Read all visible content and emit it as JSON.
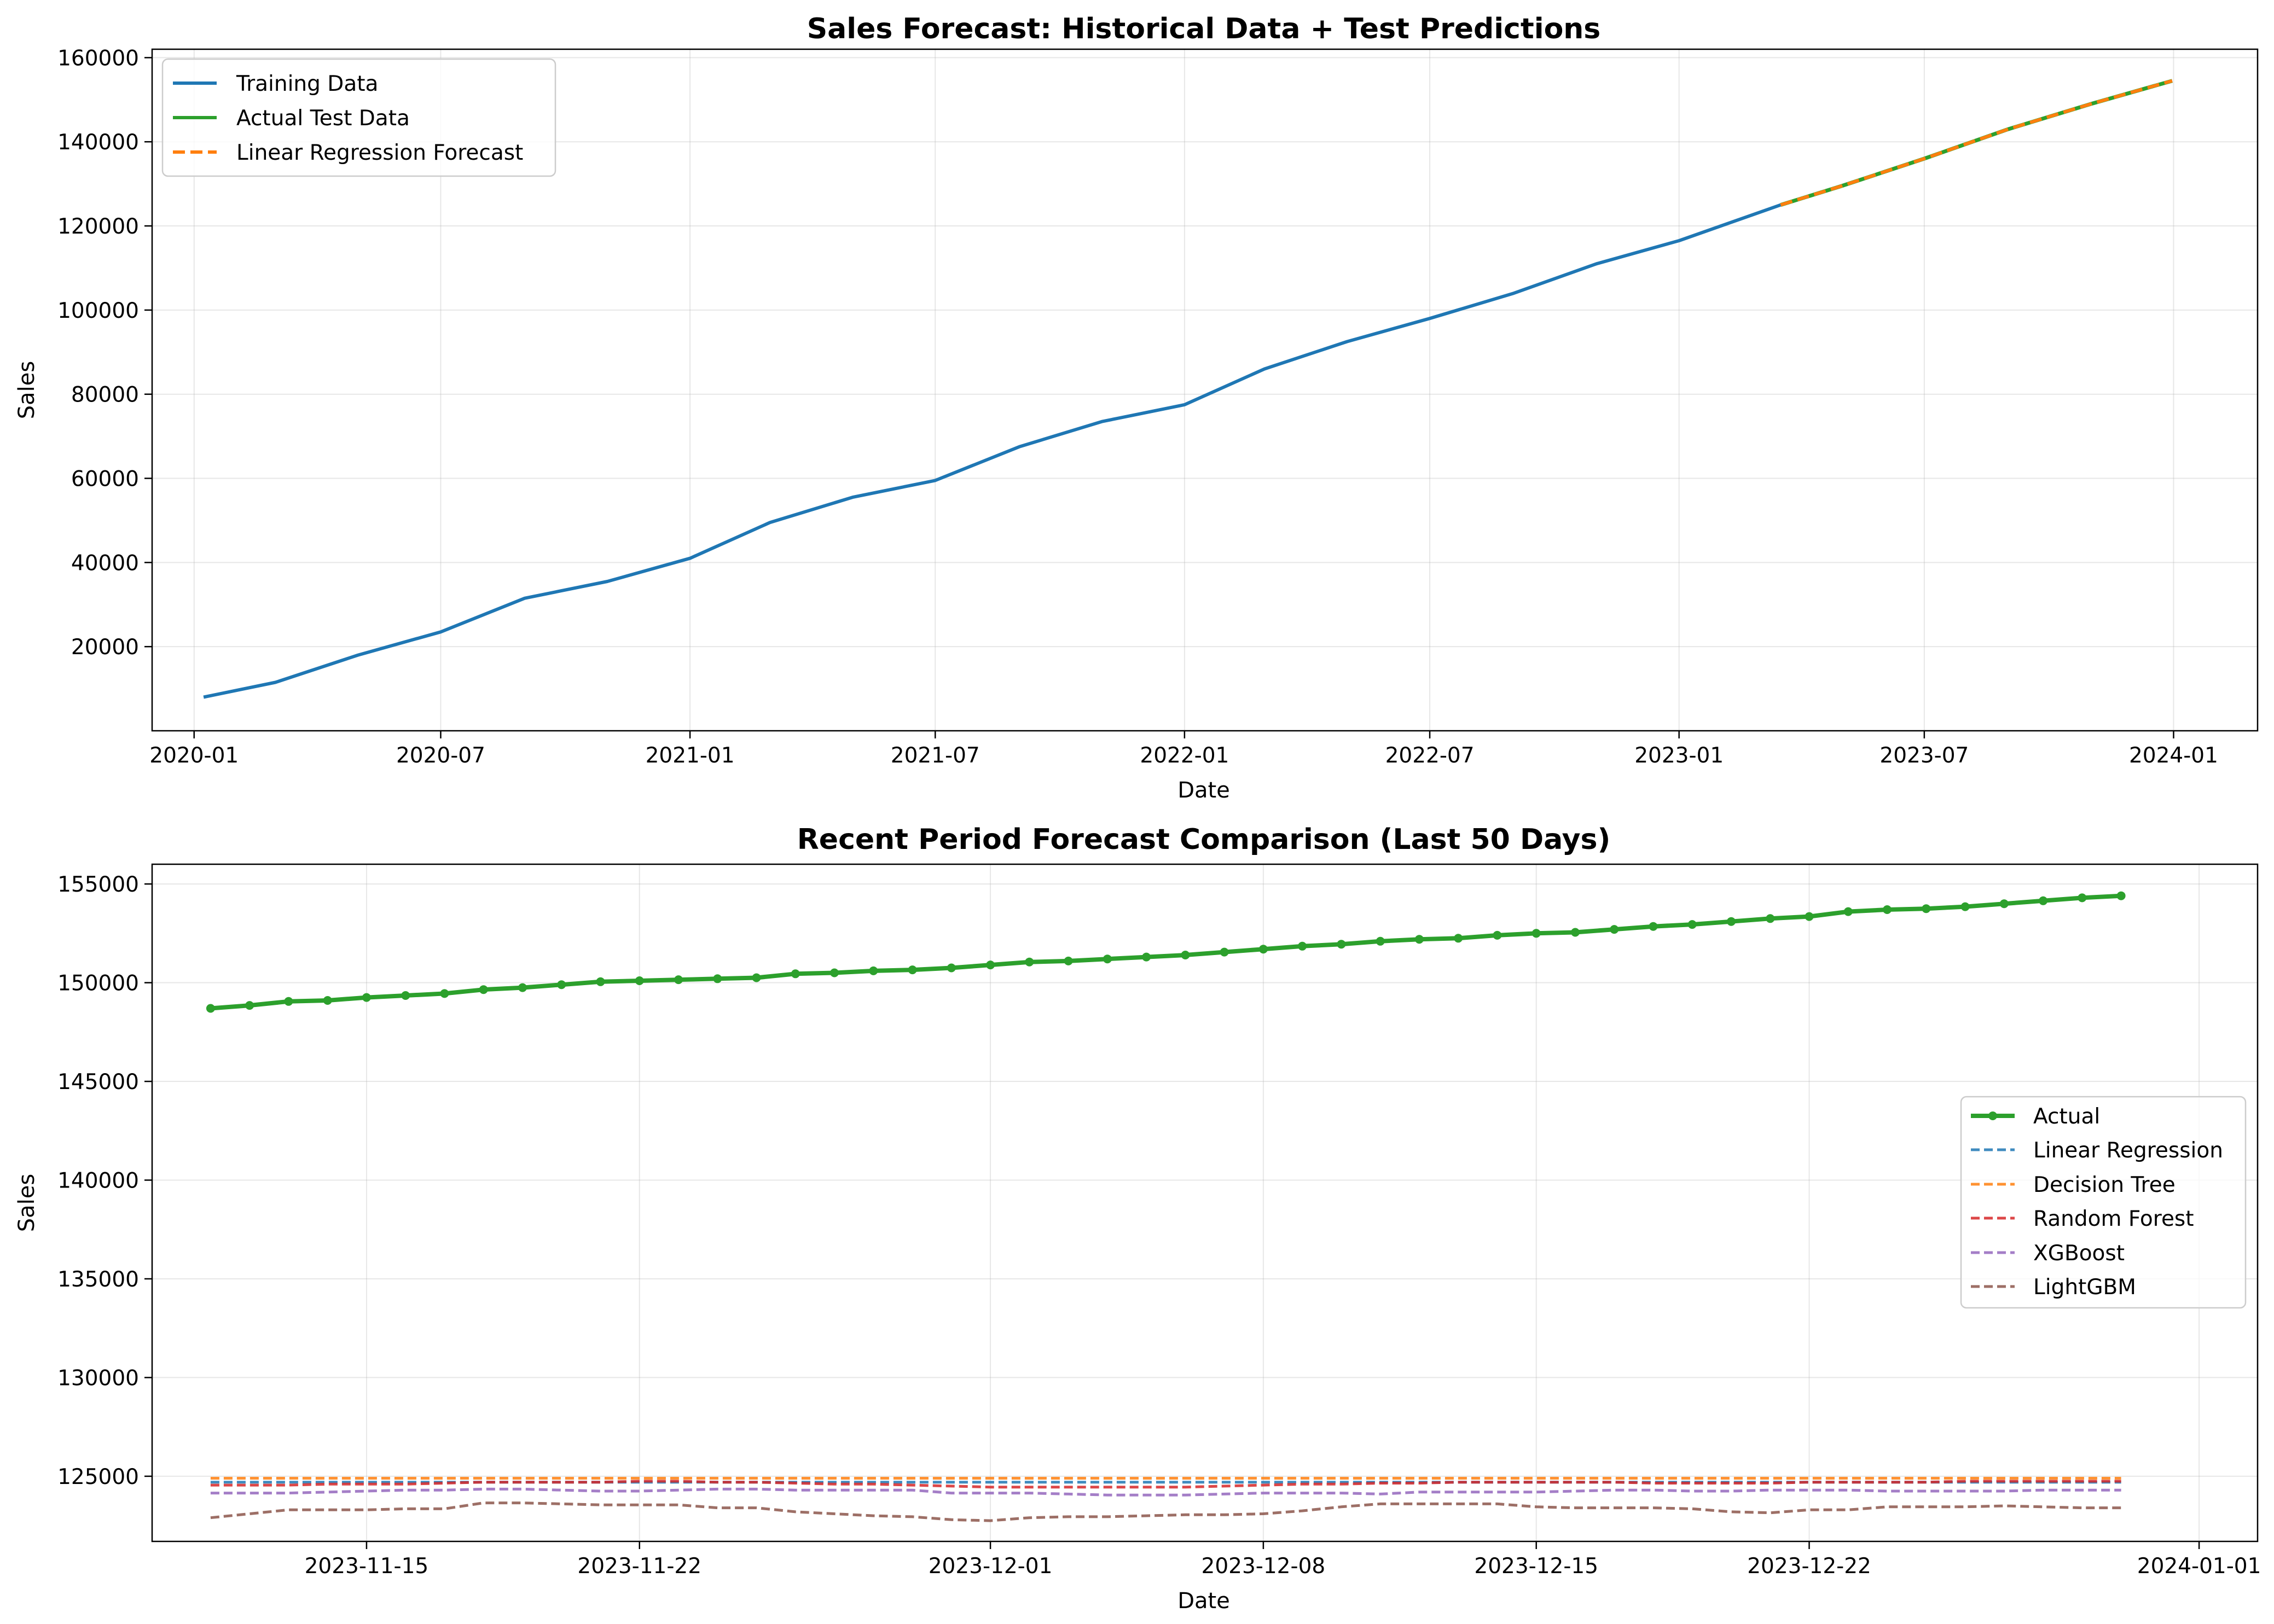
{
  "colors": {
    "training": "#1f77b4",
    "actual": "#2ca02c",
    "lr": "#ff7f0e",
    "m_lr": "#1f77b4",
    "m_dt": "#ff7f0e",
    "m_rf": "#d62728",
    "m_xgb": "#9467bd",
    "m_lgbm": "#8c564b"
  },
  "chart_data": [
    {
      "type": "line",
      "title": "Sales Forecast: Historical Data + Test Predictions",
      "xlabel": "Date",
      "ylabel": "Sales",
      "x_type": "date",
      "xlim": [
        "2019-12-01",
        "2024-03-03"
      ],
      "ylim": [
        0,
        162000
      ],
      "x_ticks": [
        "2020-01-01",
        "2020-07-01",
        "2021-01-01",
        "2021-07-01",
        "2022-01-01",
        "2022-07-01",
        "2023-01-01",
        "2023-07-01",
        "2024-01-01"
      ],
      "x_tick_labels": [
        "2020-01",
        "2020-07",
        "2021-01",
        "2021-07",
        "2022-01",
        "2022-07",
        "2023-01",
        "2023-07",
        "2024-01"
      ],
      "y_ticks": [
        20000,
        40000,
        60000,
        80000,
        100000,
        120000,
        140000,
        160000
      ],
      "y_tick_labels": [
        "20000",
        "40000",
        "60000",
        "80000",
        "100000",
        "120000",
        "140000",
        "160000"
      ],
      "grid": true,
      "legend_position": "top-left",
      "series": [
        {
          "name": "Training Data",
          "style": "solid",
          "x": [
            "2020-01-08",
            "2020-03-01",
            "2020-05-01",
            "2020-07-01",
            "2020-09-01",
            "2020-11-01",
            "2021-01-01",
            "2021-03-01",
            "2021-05-01",
            "2021-07-01",
            "2021-09-01",
            "2021-11-01",
            "2022-01-01",
            "2022-03-01",
            "2022-05-01",
            "2022-07-01",
            "2022-09-01",
            "2022-11-01",
            "2023-01-01",
            "2023-03-17"
          ],
          "y": [
            8000,
            11500,
            18000,
            23500,
            31500,
            35500,
            41000,
            49500,
            55500,
            59500,
            67500,
            73500,
            77500,
            86000,
            92500,
            98000,
            104000,
            111000,
            116500,
            125000
          ]
        },
        {
          "name": "Actual Test Data",
          "style": "solid",
          "x": [
            "2023-03-17",
            "2023-05-01",
            "2023-07-01",
            "2023-09-01",
            "2023-11-01",
            "2023-12-31"
          ],
          "y": [
            125000,
            129500,
            136000,
            143000,
            149000,
            154500
          ]
        },
        {
          "name": "Linear Regression Forecast",
          "style": "dashed",
          "x": [
            "2023-03-17",
            "2023-05-01",
            "2023-07-01",
            "2023-09-01",
            "2023-11-01",
            "2023-12-31"
          ],
          "y": [
            125000,
            129500,
            136000,
            143000,
            149000,
            154500
          ]
        }
      ]
    },
    {
      "type": "line",
      "title": "Recent Period Forecast Comparison (Last 50 Days)",
      "xlabel": "Date",
      "ylabel": "Sales",
      "x_type": "date",
      "xlim": [
        "2023-11-09T12:00",
        "2024-01-02T12:00"
      ],
      "ylim": [
        121700,
        156000
      ],
      "x_ticks": [
        "2023-11-15",
        "2023-11-22",
        "2023-12-01",
        "2023-12-08",
        "2023-12-15",
        "2023-12-22",
        "2024-01-01"
      ],
      "x_tick_labels": [
        "2023-11-15",
        "2023-11-22",
        "2023-12-01",
        "2023-12-08",
        "2023-12-15",
        "2023-12-22",
        "2024-01-01"
      ],
      "y_ticks": [
        125000,
        130000,
        135000,
        140000,
        145000,
        150000,
        155000
      ],
      "y_tick_labels": [
        "125000",
        "130000",
        "135000",
        "140000",
        "145000",
        "150000",
        "155000"
      ],
      "grid": true,
      "legend_position": "center-right",
      "x_start": "2023-11-11",
      "series": [
        {
          "name": "Actual",
          "style": "solid-markers",
          "values": [
            148700,
            148850,
            149050,
            149100,
            149250,
            149350,
            149450,
            149650,
            149750,
            149900,
            150050,
            150100,
            150150,
            150200,
            150250,
            150450,
            150500,
            150600,
            150650,
            150750,
            150900,
            151050,
            151100,
            151200,
            151300,
            151400,
            151550,
            151700,
            151850,
            151950,
            152100,
            152200,
            152250,
            152400,
            152500,
            152550,
            152700,
            152850,
            152950,
            153100,
            153250,
            153350,
            153600,
            153700,
            153750,
            153850,
            154000,
            154150,
            154300,
            154400
          ]
        },
        {
          "name": "Linear Regression",
          "style": "dashed",
          "values": [
            124700,
            124700,
            124700,
            124700,
            124700,
            124700,
            124700,
            124700,
            124700,
            124700,
            124700,
            124700,
            124700,
            124700,
            124700,
            124700,
            124700,
            124700,
            124700,
            124700,
            124700,
            124700,
            124700,
            124700,
            124700,
            124700,
            124700,
            124700,
            124700,
            124700,
            124700,
            124700,
            124700,
            124700,
            124700,
            124700,
            124700,
            124700,
            124700,
            124700,
            124700,
            124700,
            124700,
            124700,
            124700,
            124700,
            124700,
            124700,
            124700,
            124700
          ]
        },
        {
          "name": "Decision Tree",
          "style": "dashed",
          "values": [
            124900,
            124900,
            124900,
            124900,
            124900,
            124900,
            124900,
            124900,
            124900,
            124900,
            124900,
            124900,
            124900,
            124900,
            124900,
            124900,
            124900,
            124900,
            124900,
            124900,
            124900,
            124900,
            124900,
            124900,
            124900,
            124900,
            124900,
            124900,
            124900,
            124900,
            124900,
            124900,
            124900,
            124900,
            124900,
            124900,
            124900,
            124900,
            124900,
            124900,
            124900,
            124900,
            124900,
            124900,
            124900,
            124900,
            124900,
            124900,
            124900,
            124900
          ]
        },
        {
          "name": "Random Forest",
          "style": "dashed",
          "values": [
            124550,
            124550,
            124550,
            124600,
            124600,
            124600,
            124650,
            124700,
            124700,
            124700,
            124700,
            124750,
            124750,
            124700,
            124700,
            124650,
            124600,
            124600,
            124550,
            124500,
            124450,
            124450,
            124450,
            124450,
            124450,
            124450,
            124500,
            124550,
            124600,
            124600,
            124650,
            124650,
            124700,
            124700,
            124700,
            124700,
            124700,
            124650,
            124650,
            124650,
            124650,
            124700,
            124700,
            124700,
            124700,
            124750,
            124750,
            124750,
            124750,
            124750
          ]
        },
        {
          "name": "XGBoost",
          "style": "dashed",
          "values": [
            124150,
            124150,
            124150,
            124200,
            124250,
            124300,
            124300,
            124350,
            124350,
            124300,
            124250,
            124250,
            124300,
            124350,
            124350,
            124300,
            124300,
            124300,
            124300,
            124150,
            124150,
            124150,
            124100,
            124050,
            124050,
            124050,
            124100,
            124150,
            124150,
            124150,
            124100,
            124200,
            124200,
            124200,
            124200,
            124250,
            124300,
            124300,
            124250,
            124250,
            124300,
            124300,
            124300,
            124250,
            124250,
            124250,
            124250,
            124300,
            124300,
            124300
          ]
        },
        {
          "name": "LightGBM",
          "style": "dashed",
          "values": [
            122900,
            123100,
            123300,
            123300,
            123300,
            123350,
            123350,
            123650,
            123650,
            123600,
            123550,
            123550,
            123550,
            123400,
            123400,
            123200,
            123100,
            123000,
            122950,
            122800,
            122750,
            122900,
            122950,
            122950,
            123000,
            123050,
            123050,
            123100,
            123250,
            123450,
            123600,
            123600,
            123600,
            123600,
            123450,
            123400,
            123400,
            123400,
            123350,
            123200,
            123150,
            123300,
            123300,
            123450,
            123450,
            123450,
            123500,
            123450,
            123400,
            123400
          ]
        }
      ]
    }
  ]
}
